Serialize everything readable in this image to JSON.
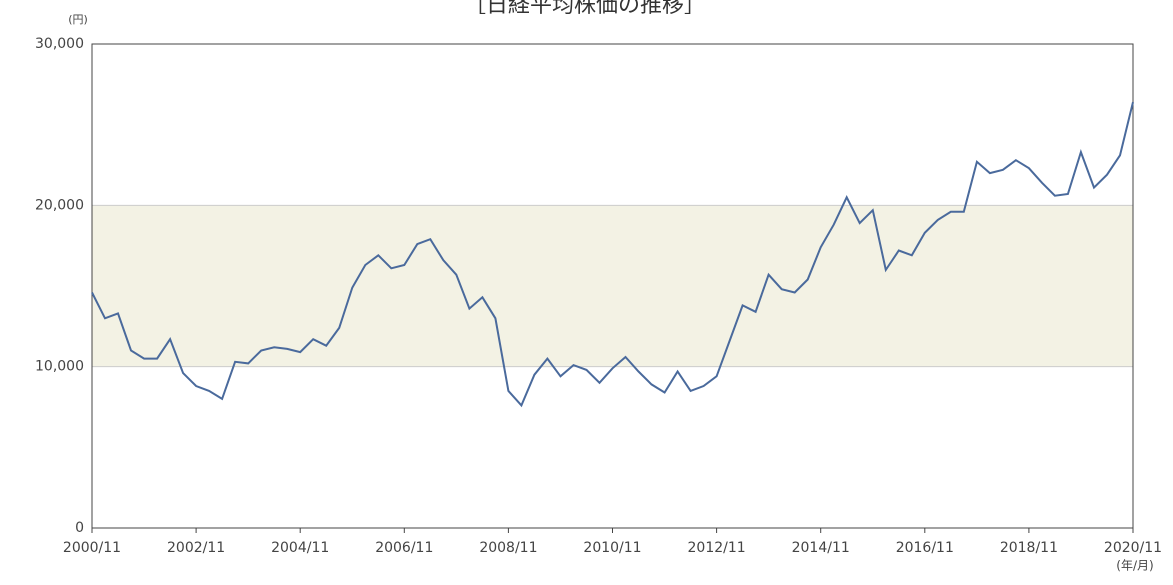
{
  "chart_data": {
    "type": "line",
    "title": "［日経平均株価の推移］",
    "y_unit": "(円)",
    "x_unit": "(年/月)",
    "x": [
      "2000/11",
      "2001/02",
      "2001/05",
      "2001/08",
      "2001/11",
      "2002/02",
      "2002/05",
      "2002/08",
      "2002/11",
      "2003/02",
      "2003/05",
      "2003/08",
      "2003/11",
      "2004/02",
      "2004/05",
      "2004/08",
      "2004/11",
      "2005/02",
      "2005/05",
      "2005/08",
      "2005/11",
      "2006/02",
      "2006/05",
      "2006/08",
      "2006/11",
      "2007/02",
      "2007/05",
      "2007/08",
      "2007/11",
      "2008/02",
      "2008/05",
      "2008/08",
      "2008/11",
      "2009/02",
      "2009/05",
      "2009/08",
      "2009/11",
      "2010/02",
      "2010/05",
      "2010/08",
      "2010/11",
      "2011/02",
      "2011/05",
      "2011/08",
      "2011/11",
      "2012/02",
      "2012/05",
      "2012/08",
      "2012/11",
      "2013/02",
      "2013/05",
      "2013/08",
      "2013/11",
      "2014/02",
      "2014/05",
      "2014/08",
      "2014/11",
      "2015/02",
      "2015/05",
      "2015/08",
      "2015/11",
      "2016/02",
      "2016/05",
      "2016/08",
      "2016/11",
      "2017/02",
      "2017/05",
      "2017/08",
      "2017/11",
      "2018/02",
      "2018/05",
      "2018/08",
      "2018/11",
      "2019/02",
      "2019/05",
      "2019/08",
      "2019/11",
      "2020/02",
      "2020/05",
      "2020/08",
      "2020/11"
    ],
    "series": [
      {
        "color": "#4a6a9c",
        "values": [
          14600,
          13000,
          13300,
          11000,
          10500,
          10500,
          11700,
          9600,
          8800,
          8500,
          8000,
          10300,
          10200,
          11000,
          11200,
          11100,
          10900,
          11700,
          11300,
          12400,
          14900,
          16300,
          16900,
          16100,
          16300,
          17600,
          17900,
          16600,
          15700,
          13600,
          14300,
          13000,
          8500,
          7600,
          9500,
          10500,
          9400,
          10100,
          9800,
          9000,
          9900,
          10600,
          9700,
          8900,
          8400,
          9700,
          8500,
          8800,
          9400,
          11600,
          13800,
          13400,
          15700,
          14800,
          14600,
          15400,
          17400,
          18800,
          20500,
          18900,
          19700,
          16000,
          17200,
          16900,
          18300,
          19100,
          19600,
          19600,
          22700,
          22000,
          22200,
          22800,
          22300,
          21400,
          20600,
          20700,
          23300,
          21100,
          21900,
          23100,
          26400
        ]
      }
    ],
    "xlim": [
      "2000/11",
      "2020/11"
    ],
    "xticks": [
      "2000/11",
      "2002/11",
      "2004/11",
      "2006/11",
      "2008/11",
      "2010/11",
      "2012/11",
      "2014/11",
      "2016/11",
      "2018/11",
      "2020/11"
    ],
    "ylim": [
      0,
      30000
    ],
    "yticks": [
      0,
      {
        "value": 10000,
        "label": "10,000"
      },
      {
        "value": 20000,
        "label": "20,000"
      },
      {
        "value": 30000,
        "label": "30,000"
      }
    ],
    "band": [
      10000,
      20000
    ],
    "band_color": "#f3f2e4",
    "grid": true
  }
}
